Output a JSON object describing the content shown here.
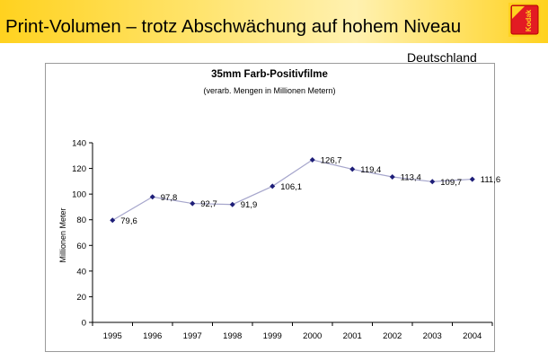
{
  "slide": {
    "title": "Print-Volumen – trotz Abschwächung auf hohem Niveau",
    "region": "Deutschland",
    "logo_text": "Kodak",
    "colors": {
      "header": "#ffd21f",
      "logo_red": "#e31b23",
      "line": "#a6a6cc",
      "marker": "#1e1e78"
    }
  },
  "chart_data": {
    "type": "line",
    "title": "35mm Farb-Positivfilme",
    "subtitle": "(verarb. Mengen in Millionen Metern)",
    "ylabel": "Millionen Meter",
    "xlabel": "",
    "categories": [
      "1995",
      "1996",
      "1997",
      "1998",
      "1999",
      "2000",
      "2001",
      "2002",
      "2003",
      "2004"
    ],
    "values": [
      79.6,
      97.8,
      92.7,
      91.9,
      106.1,
      126.7,
      119.4,
      113.4,
      109.7,
      111.6
    ],
    "data_labels": [
      "79,6",
      "97,8",
      "92,7",
      "91,9",
      "106,1",
      "126,7",
      "119,4",
      "113,4",
      "109,7",
      "111,6"
    ],
    "ylim": [
      0,
      140
    ],
    "yticks": [
      "0",
      "20",
      "40",
      "60",
      "80",
      "100",
      "120",
      "140"
    ],
    "grid": false,
    "legend": "none"
  }
}
